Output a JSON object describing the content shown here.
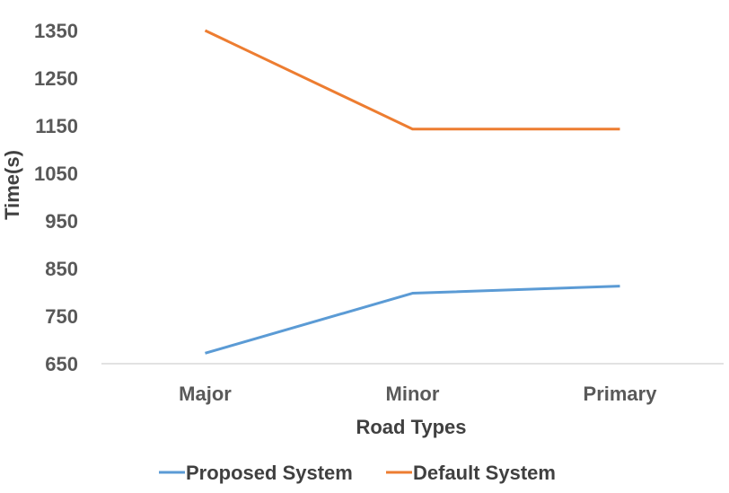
{
  "chart_data": {
    "type": "line",
    "categories": [
      "Major",
      "Minor",
      "Primary"
    ],
    "series": [
      {
        "name": "Proposed System",
        "values": [
          672,
          798,
          813
        ],
        "color": "#5B9BD5"
      },
      {
        "name": "Default System",
        "values": [
          1350,
          1143,
          1143
        ],
        "color": "#ED7D31"
      }
    ],
    "yticks": [
      650,
      750,
      850,
      950,
      1050,
      1150,
      1250,
      1350
    ],
    "ylim": [
      650,
      1350
    ],
    "xlabel": "Road Types",
    "ylabel": "Time(s)",
    "grid": false,
    "legend_position": "bottom"
  }
}
